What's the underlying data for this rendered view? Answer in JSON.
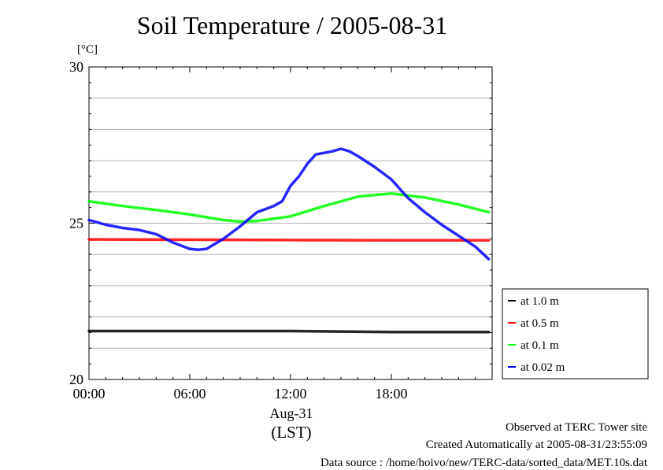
{
  "chart_data": {
    "type": "line",
    "title": "Soil Temperature / 2005-08-31",
    "ylabel": "[°C]",
    "ylim": [
      20,
      30
    ],
    "yticks": [
      "20",
      "25",
      "30"
    ],
    "xlim": [
      0,
      24
    ],
    "xticks": [
      {
        "hour": 0,
        "label": "00:00"
      },
      {
        "hour": 6,
        "label": "06:00"
      },
      {
        "hour": 12,
        "label": "12:00"
      },
      {
        "hour": 18,
        "label": "18:00"
      }
    ],
    "date_label": "Aug-31",
    "time_zone_label": "(LST)",
    "grid": true,
    "legend_position": "right",
    "series": [
      {
        "name": "at 1.0 m",
        "color": "#000000",
        "x": [
          0,
          6,
          12,
          18,
          23.8
        ],
        "y": [
          21.55,
          21.55,
          21.55,
          21.52,
          21.52
        ]
      },
      {
        "name": "at 0.5 m",
        "color": "#ff0000",
        "x": [
          0,
          6,
          12,
          18,
          23.8
        ],
        "y": [
          24.48,
          24.47,
          24.46,
          24.45,
          24.45
        ]
      },
      {
        "name": "at 0.1 m",
        "color": "#00ff00",
        "x": [
          0,
          2,
          4,
          6,
          8,
          9,
          10,
          12,
          14,
          16,
          18,
          20,
          22,
          23.8
        ],
        "y": [
          25.7,
          25.55,
          25.42,
          25.28,
          25.1,
          25.05,
          25.07,
          25.22,
          25.55,
          25.85,
          25.95,
          25.82,
          25.6,
          25.35
        ]
      },
      {
        "name": "at 0.02 m",
        "color": "#0000ff",
        "x": [
          0,
          1,
          2,
          3,
          4,
          5,
          6,
          6.5,
          7,
          8,
          9,
          10,
          11,
          11.5,
          12,
          12.5,
          13,
          13.5,
          14,
          14.5,
          15,
          15.5,
          16,
          17,
          18,
          19,
          20,
          21,
          22,
          23,
          23.8
        ],
        "y": [
          25.1,
          24.95,
          24.85,
          24.78,
          24.65,
          24.38,
          24.18,
          24.15,
          24.18,
          24.5,
          24.9,
          25.35,
          25.55,
          25.7,
          26.2,
          26.5,
          26.9,
          27.2,
          27.25,
          27.3,
          27.38,
          27.3,
          27.15,
          26.8,
          26.4,
          25.8,
          25.35,
          24.95,
          24.6,
          24.25,
          23.85
        ]
      }
    ]
  },
  "footer": {
    "line1": "Observed at TERC Tower site",
    "line2": "Created Automatically at 2005-08-31/23:55:09",
    "line3": "Data source : /home/hoivo/new/TERC-data/sorted_data/MET.10s.dat"
  }
}
